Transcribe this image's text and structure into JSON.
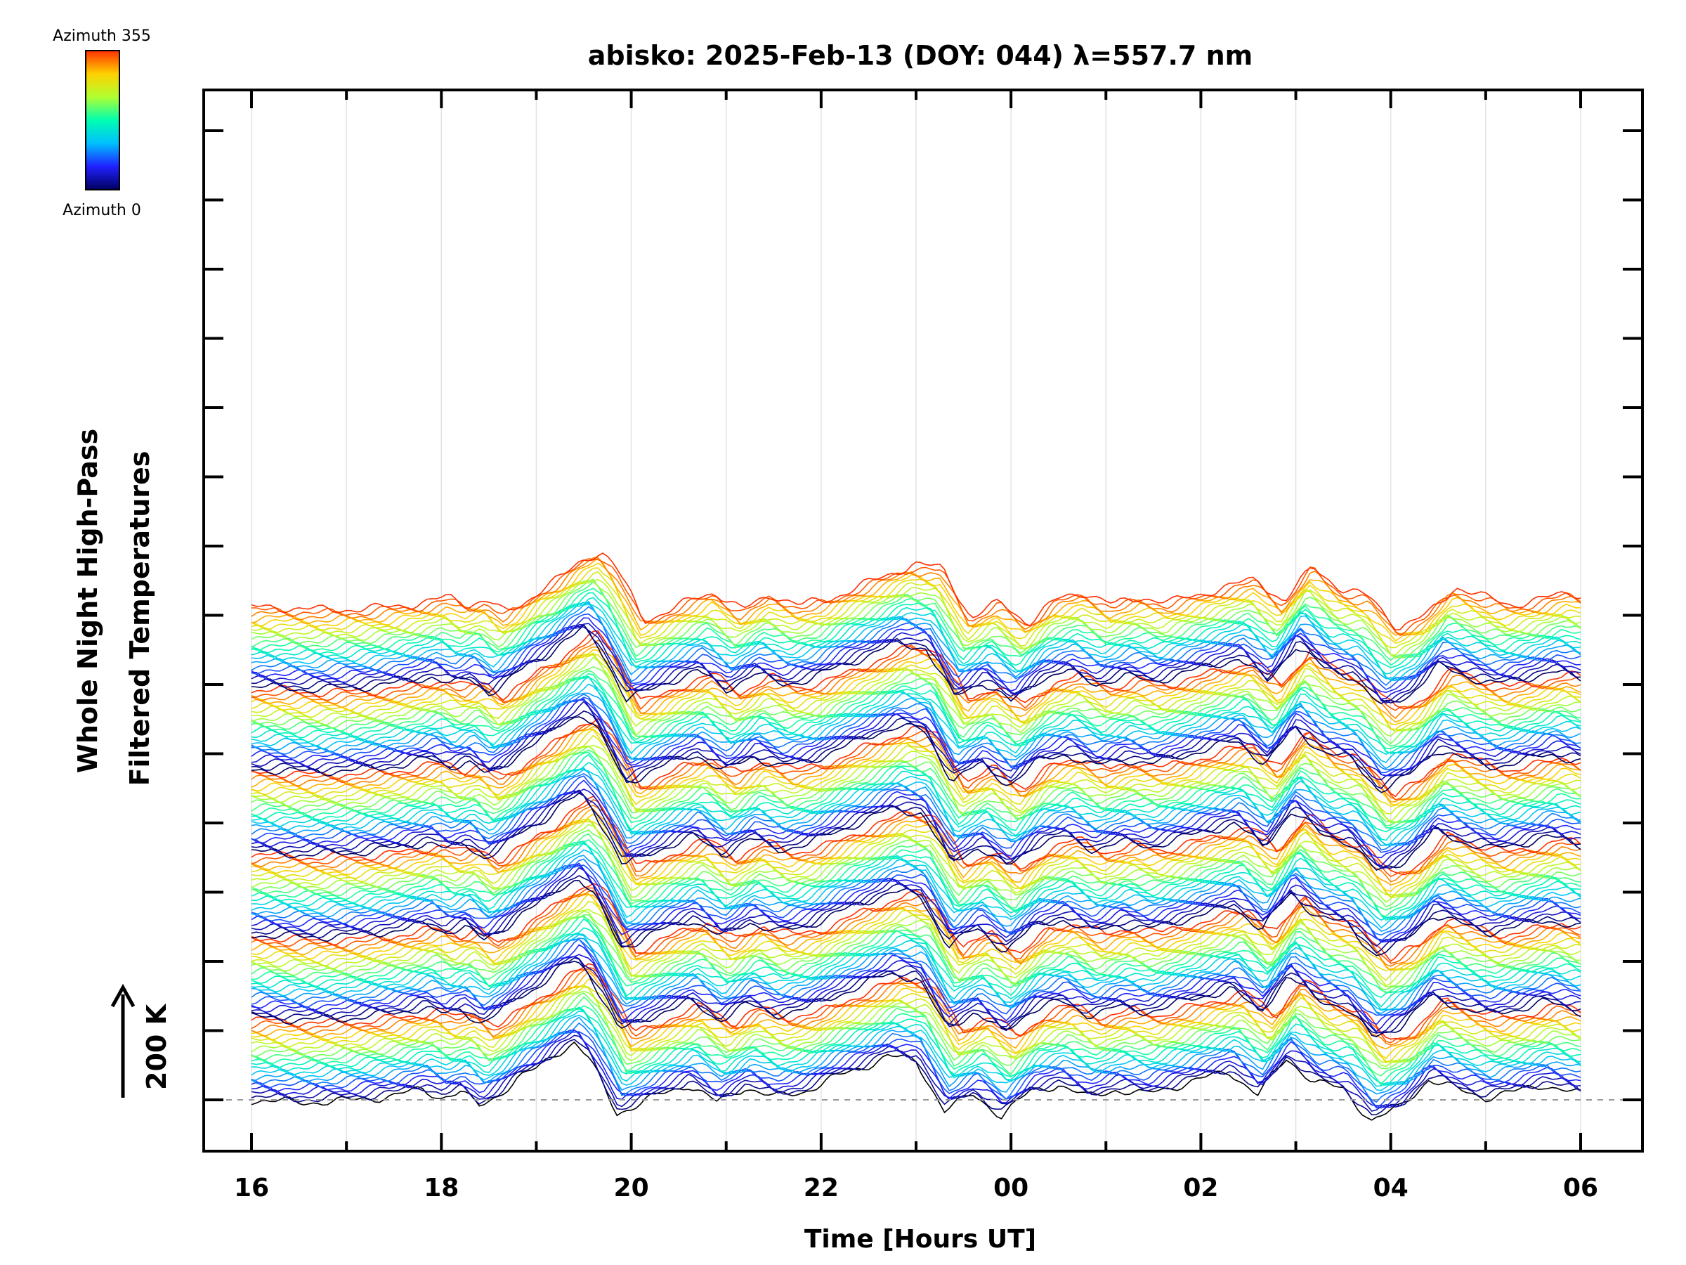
{
  "chart_data": {
    "type": "line",
    "title": "abisko: 2025-Feb-13 (DOY: 044) λ=557.7 nm",
    "xlabel": "Time [Hours UT]",
    "ylabel_line1": "Whole Night High-Pass",
    "ylabel_line2": "Filtered Temperatures",
    "scale_label": "200 K",
    "x_ticks": [
      "16",
      "18",
      "20",
      "22",
      "00",
      "02",
      "04",
      "06"
    ],
    "xlim_hours_ut": [
      16,
      30
    ],
    "colorbar": {
      "top_label": "Azimuth 355",
      "bottom_label": "Azimuth 0",
      "colormap": "rainbow",
      "colors": [
        "#000060",
        "#2020ff",
        "#00c0ff",
        "#00ffb0",
        "#b0ff30",
        "#ffd000",
        "#ff3000"
      ]
    },
    "stacked_series_count": 144,
    "series_offset_kelvin": 28,
    "azimuth_range_deg": [
      0,
      355
    ],
    "shared_profile": {
      "description_units": "hours UT vs relative temperature (K)",
      "x": [
        16.0,
        16.5,
        17.0,
        17.5,
        17.8,
        18.0,
        18.2,
        18.4,
        18.6,
        18.8,
        19.0,
        19.2,
        19.4,
        19.55,
        19.7,
        19.85,
        20.0,
        20.3,
        20.6,
        20.9,
        21.2,
        21.5,
        21.8,
        22.1,
        22.4,
        22.7,
        23.0,
        23.3,
        23.6,
        23.9,
        24.2,
        24.5,
        24.8,
        25.1,
        25.4,
        25.7,
        26.0,
        26.3,
        26.6,
        26.9,
        27.2,
        27.5,
        27.8,
        28.1,
        28.4,
        28.7,
        29.0,
        29.3,
        29.6,
        30.0
      ],
      "y": [
        0,
        -5,
        -2,
        8,
        20,
        5,
        15,
        -12,
        10,
        40,
        60,
        90,
        110,
        80,
        30,
        -25,
        -15,
        10,
        30,
        -5,
        25,
        5,
        15,
        40,
        60,
        85,
        75,
        -20,
        10,
        -30,
        15,
        30,
        5,
        20,
        10,
        25,
        40,
        55,
        10,
        80,
        35,
        20,
        -40,
        -15,
        40,
        20,
        5,
        15,
        30,
        10
      ]
    }
  }
}
